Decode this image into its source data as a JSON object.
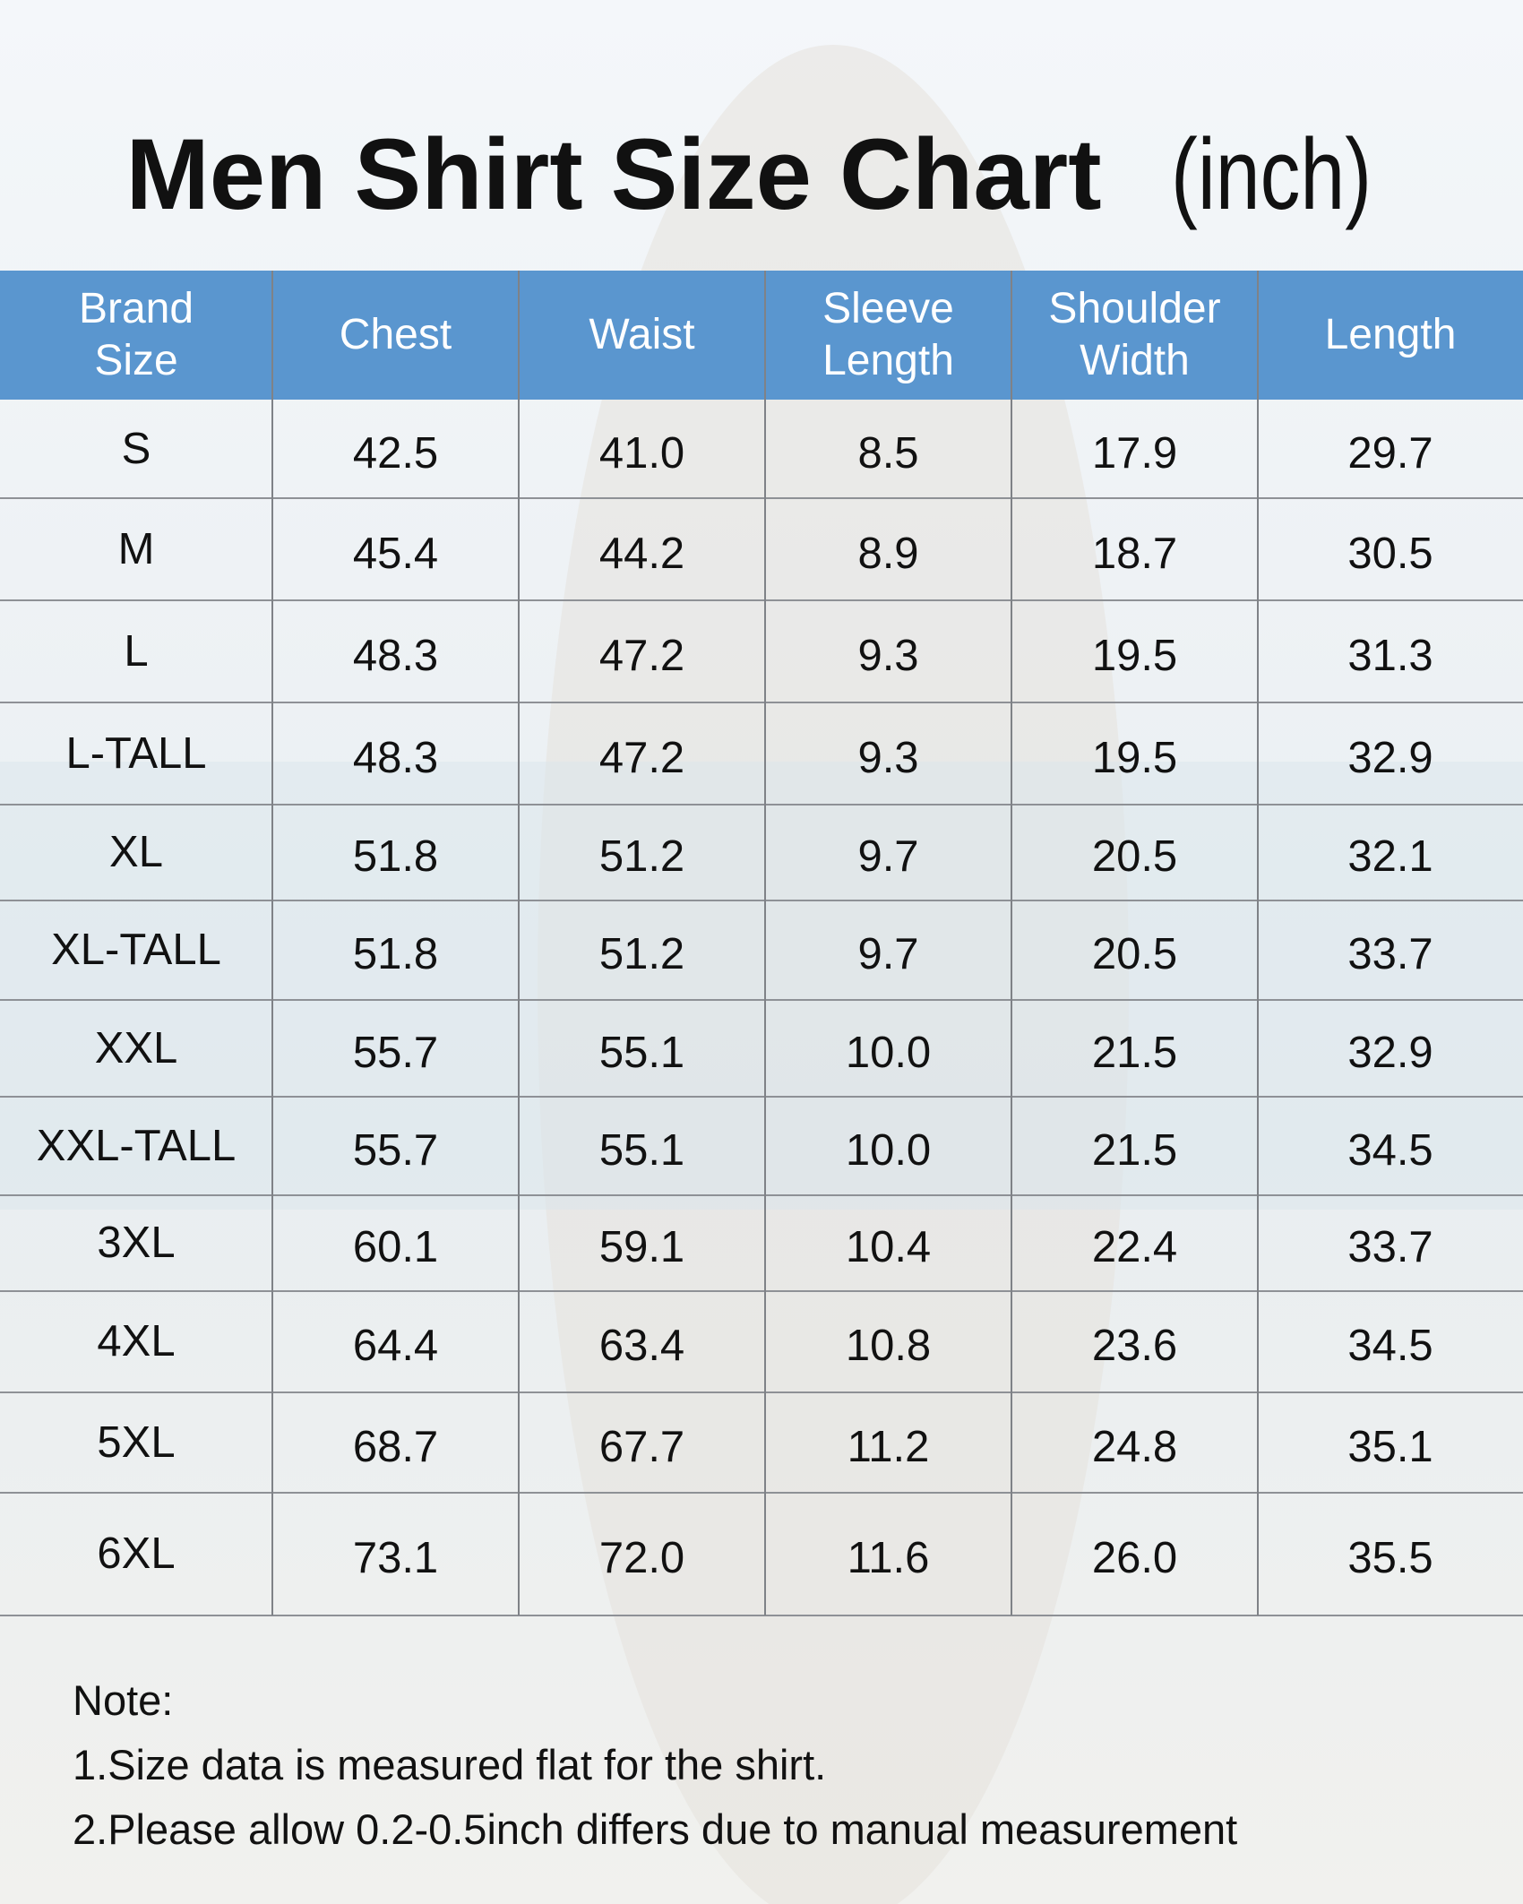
{
  "header": {
    "title": "Men Shirt Size Chart",
    "unit": "(inch)"
  },
  "table": {
    "headers": [
      [
        "Brand",
        "Size"
      ],
      [
        "Chest"
      ],
      [
        "Waist"
      ],
      [
        "Sleeve",
        "Length"
      ],
      [
        "Shoulder",
        "Width"
      ],
      [
        "Length"
      ]
    ],
    "rows": [
      [
        "S",
        "42.5",
        "41.0",
        "8.5",
        "17.9",
        "29.7"
      ],
      [
        "M",
        "45.4",
        "44.2",
        "8.9",
        "18.7",
        "30.5"
      ],
      [
        "L",
        "48.3",
        "47.2",
        "9.3",
        "19.5",
        "31.3"
      ],
      [
        "L-TALL",
        "48.3",
        "47.2",
        "9.3",
        "19.5",
        "32.9"
      ],
      [
        "XL",
        "51.8",
        "51.2",
        "9.7",
        "20.5",
        "32.1"
      ],
      [
        "XL-TALL",
        "51.8",
        "51.2",
        "9.7",
        "20.5",
        "33.7"
      ],
      [
        "XXL",
        "55.7",
        "55.1",
        "10.0",
        "21.5",
        "32.9"
      ],
      [
        "XXL-TALL",
        "55.7",
        "55.1",
        "10.0",
        "21.5",
        "34.5"
      ],
      [
        "3XL",
        "60.1",
        "59.1",
        "10.4",
        "22.4",
        "33.7"
      ],
      [
        "4XL",
        "64.4",
        "63.4",
        "10.8",
        "23.6",
        "34.5"
      ],
      [
        "5XL",
        "68.7",
        "67.7",
        "11.2",
        "24.8",
        "35.1"
      ],
      [
        "6XL",
        "73.1",
        "72.0",
        "11.6",
        "26.0",
        "35.5"
      ]
    ]
  },
  "notes": {
    "heading": "Note:",
    "items": [
      "1.Size data is measured flat for the shirt.",
      "2.Please allow 0.2-0.5inch differs due to manual measurement"
    ]
  }
}
